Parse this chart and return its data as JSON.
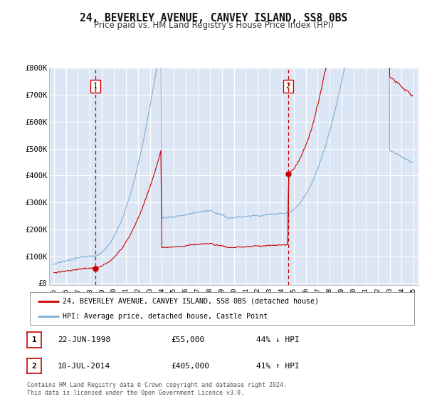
{
  "title": "24, BEVERLEY AVENUE, CANVEY ISLAND, SS8 0BS",
  "subtitle": "Price paid vs. HM Land Registry's House Price Index (HPI)",
  "title_fontsize": 10.5,
  "subtitle_fontsize": 8.5,
  "background_color": "#ffffff",
  "plot_bg_color": "#dce6f5",
  "grid_color": "#ffffff",
  "sale1": {
    "date_num": 1998.47,
    "price": 55000,
    "label": "1",
    "color": "#cc0000"
  },
  "sale2": {
    "date_num": 2014.53,
    "price": 405000,
    "label": "2",
    "color": "#cc0000"
  },
  "vline_color": "#cc0000",
  "hpi_color": "#7bafd4",
  "price_color": "#cc0000",
  "xlim": [
    1994.6,
    2025.4
  ],
  "ylim": [
    -8000,
    800000
  ],
  "yticks": [
    0,
    100000,
    200000,
    300000,
    400000,
    500000,
    600000,
    700000,
    800000
  ],
  "ytick_labels": [
    "£0",
    "£100K",
    "£200K",
    "£300K",
    "£400K",
    "£500K",
    "£600K",
    "£700K",
    "£800K"
  ],
  "xticks": [
    1995,
    1996,
    1997,
    1998,
    1999,
    2000,
    2001,
    2002,
    2003,
    2004,
    2005,
    2006,
    2007,
    2008,
    2009,
    2010,
    2011,
    2012,
    2013,
    2014,
    2015,
    2016,
    2017,
    2018,
    2019,
    2020,
    2021,
    2022,
    2023,
    2024,
    2025
  ],
  "legend_label_price": "24, BEVERLEY AVENUE, CANVEY ISLAND, SS8 0BS (detached house)",
  "legend_label_hpi": "HPI: Average price, detached house, Castle Point",
  "table_rows": [
    {
      "num": "1",
      "date": "22-JUN-1998",
      "price": "£55,000",
      "hpi": "44% ↓ HPI"
    },
    {
      "num": "2",
      "date": "10-JUL-2014",
      "price": "£405,000",
      "hpi": "41% ↑ HPI"
    }
  ],
  "footer": "Contains HM Land Registry data © Crown copyright and database right 2024.\nThis data is licensed under the Open Government Licence v3.0."
}
